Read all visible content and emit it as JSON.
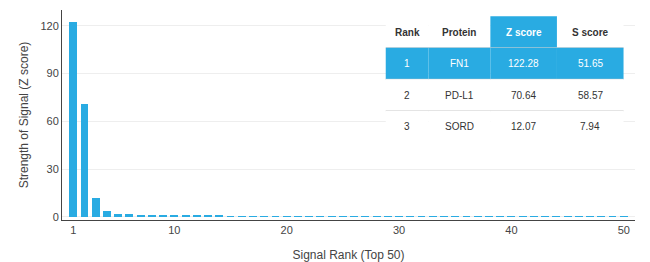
{
  "chart_data": {
    "type": "bar",
    "xlabel": "Signal Rank (Top 50)",
    "ylabel": "Strength of Signal (Z score)",
    "x": [
      1,
      2,
      3,
      4,
      5,
      6,
      7,
      8,
      9,
      10,
      11,
      12,
      13,
      14,
      15,
      16,
      17,
      18,
      19,
      20,
      21,
      22,
      23,
      24,
      25,
      26,
      27,
      28,
      29,
      30,
      31,
      32,
      33,
      34,
      35,
      36,
      37,
      38,
      39,
      40,
      41,
      42,
      43,
      44,
      45,
      46,
      47,
      48,
      49,
      50
    ],
    "values": [
      122.28,
      70.64,
      12.07,
      3.5,
      2.0,
      1.5,
      1.2,
      1.0,
      0.9,
      0.8,
      0.7,
      0.65,
      0.6,
      0.55,
      0.5,
      0.48,
      0.45,
      0.42,
      0.4,
      0.38,
      0.36,
      0.34,
      0.32,
      0.3,
      0.28,
      0.27,
      0.26,
      0.25,
      0.24,
      0.23,
      0.22,
      0.21,
      0.2,
      0.19,
      0.18,
      0.17,
      0.16,
      0.15,
      0.14,
      0.13,
      0.12,
      0.11,
      0.1,
      0.09,
      0.08,
      0.07,
      0.06,
      0.05,
      0.04,
      0.03
    ],
    "color": "#29ABE2",
    "xlim": [
      0,
      51
    ],
    "xticks": [
      1,
      10,
      20,
      30,
      40,
      50
    ],
    "ylim": [
      -2,
      130
    ],
    "yticks": [
      0,
      30,
      60,
      90,
      120
    ],
    "grid": true,
    "table": {
      "columns": [
        "Rank",
        "Protein",
        "Z score",
        "S score"
      ],
      "rows": [
        [
          "1",
          "FN1",
          "122.28",
          "51.65"
        ],
        [
          "2",
          "PD-L1",
          "70.64",
          "58.57"
        ],
        [
          "3",
          "SORD",
          "12.07",
          "7.94"
        ]
      ]
    }
  }
}
